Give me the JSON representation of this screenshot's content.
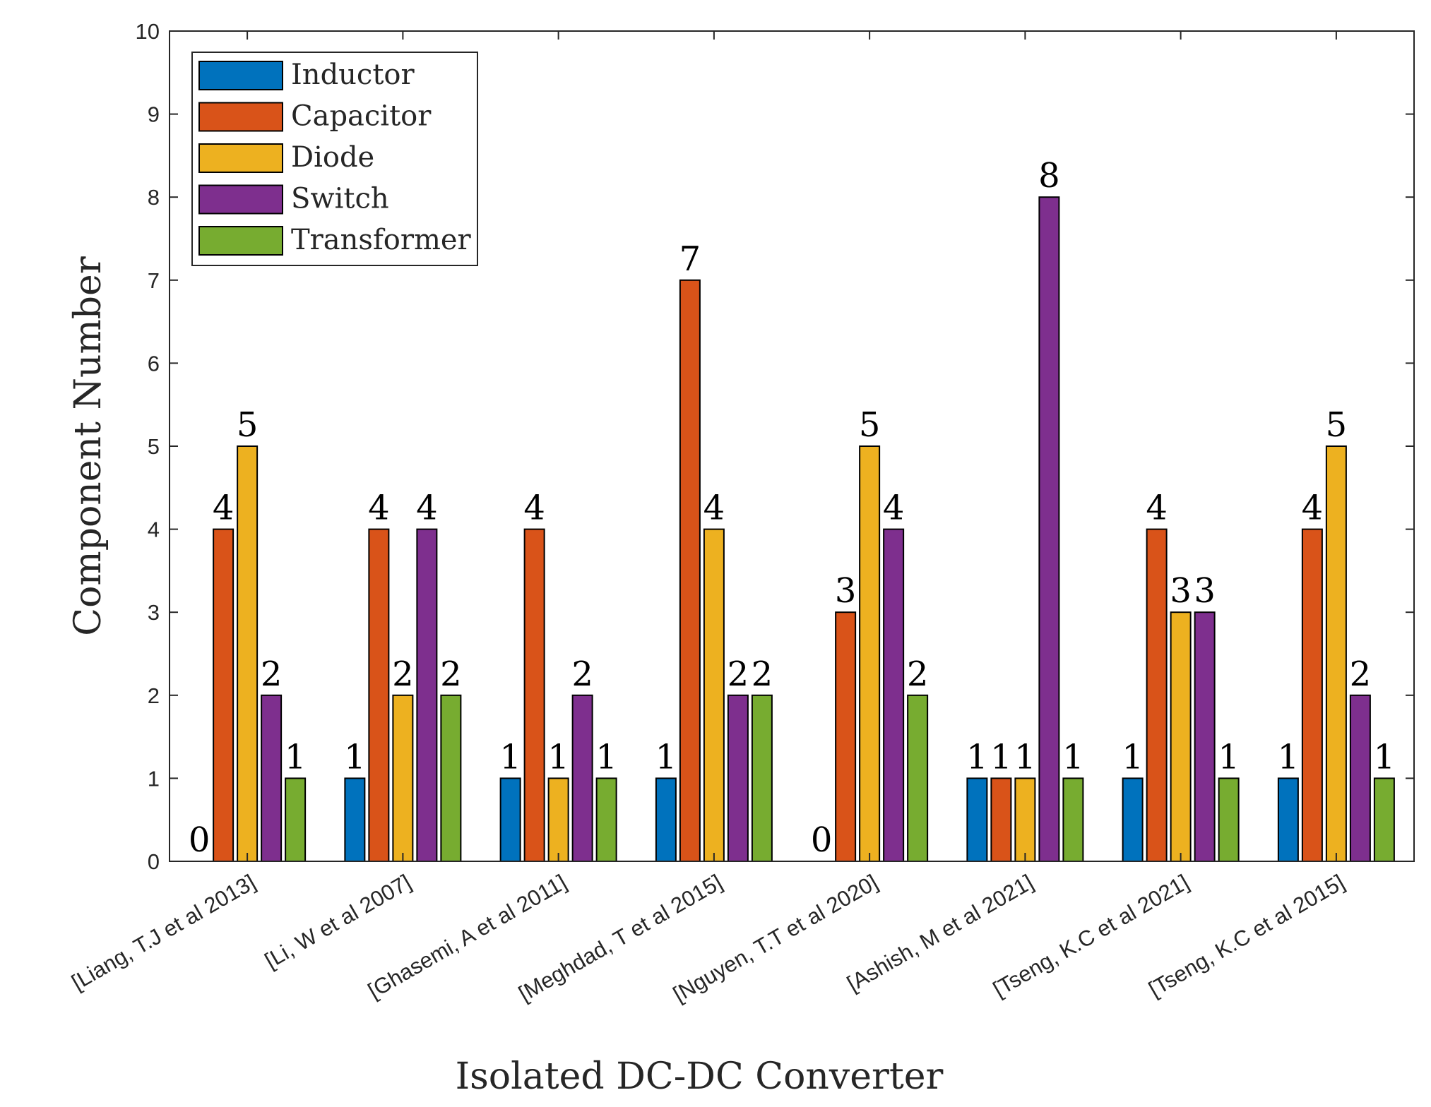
{
  "chart_data": {
    "type": "bar",
    "title": "",
    "xlabel": "Isolated DC-DC Converter",
    "ylabel": "Component Number",
    "ylim": [
      0,
      10
    ],
    "yticks": [
      "0",
      "1",
      "2",
      "3",
      "4",
      "5",
      "6",
      "7",
      "8",
      "9",
      "10"
    ],
    "categories": [
      "[Liang, T.J et al 2013]",
      "[Li, W et al 2007]",
      "[Ghasemi, A et al 2011]",
      "[Meghdad, T et al 2015]",
      "[Nguyen, T.T et al 2020]",
      "[Ashish, M et al 2021]",
      "[Tseng, K.C et al 2021]",
      "[Tseng, K.C et al 2015]"
    ],
    "series": [
      {
        "name": "Inductor",
        "color": "#0072BD",
        "values": [
          0,
          1,
          1,
          1,
          0,
          1,
          1,
          1
        ]
      },
      {
        "name": "Capacitor",
        "color": "#D95319",
        "values": [
          4,
          4,
          4,
          7,
          3,
          1,
          4,
          4
        ]
      },
      {
        "name": "Diode",
        "color": "#EDB120",
        "values": [
          5,
          2,
          1,
          4,
          5,
          1,
          3,
          5
        ]
      },
      {
        "name": "Switch",
        "color": "#7E2F8E",
        "values": [
          2,
          4,
          2,
          2,
          4,
          8,
          3,
          2
        ]
      },
      {
        "name": "Transformer",
        "color": "#77AC30",
        "values": [
          1,
          2,
          1,
          2,
          2,
          1,
          1,
          1
        ]
      }
    ],
    "data_labels": [
      [
        "0",
        "4",
        "5",
        "2",
        "1"
      ],
      [
        "1",
        "4",
        "2",
        "4",
        "2"
      ],
      [
        "1",
        "4",
        "1",
        "2",
        "1"
      ],
      [
        "1",
        "7",
        "4",
        "2",
        "2"
      ],
      [
        "0",
        "3",
        "5",
        "4",
        "2"
      ],
      [
        "1",
        "1",
        "1",
        "8",
        "1"
      ],
      [
        "1",
        "4",
        "3",
        "3",
        "1"
      ],
      [
        "1",
        "4",
        "5",
        "2",
        "1"
      ]
    ],
    "legend_position": "top-left",
    "grid": false
  }
}
